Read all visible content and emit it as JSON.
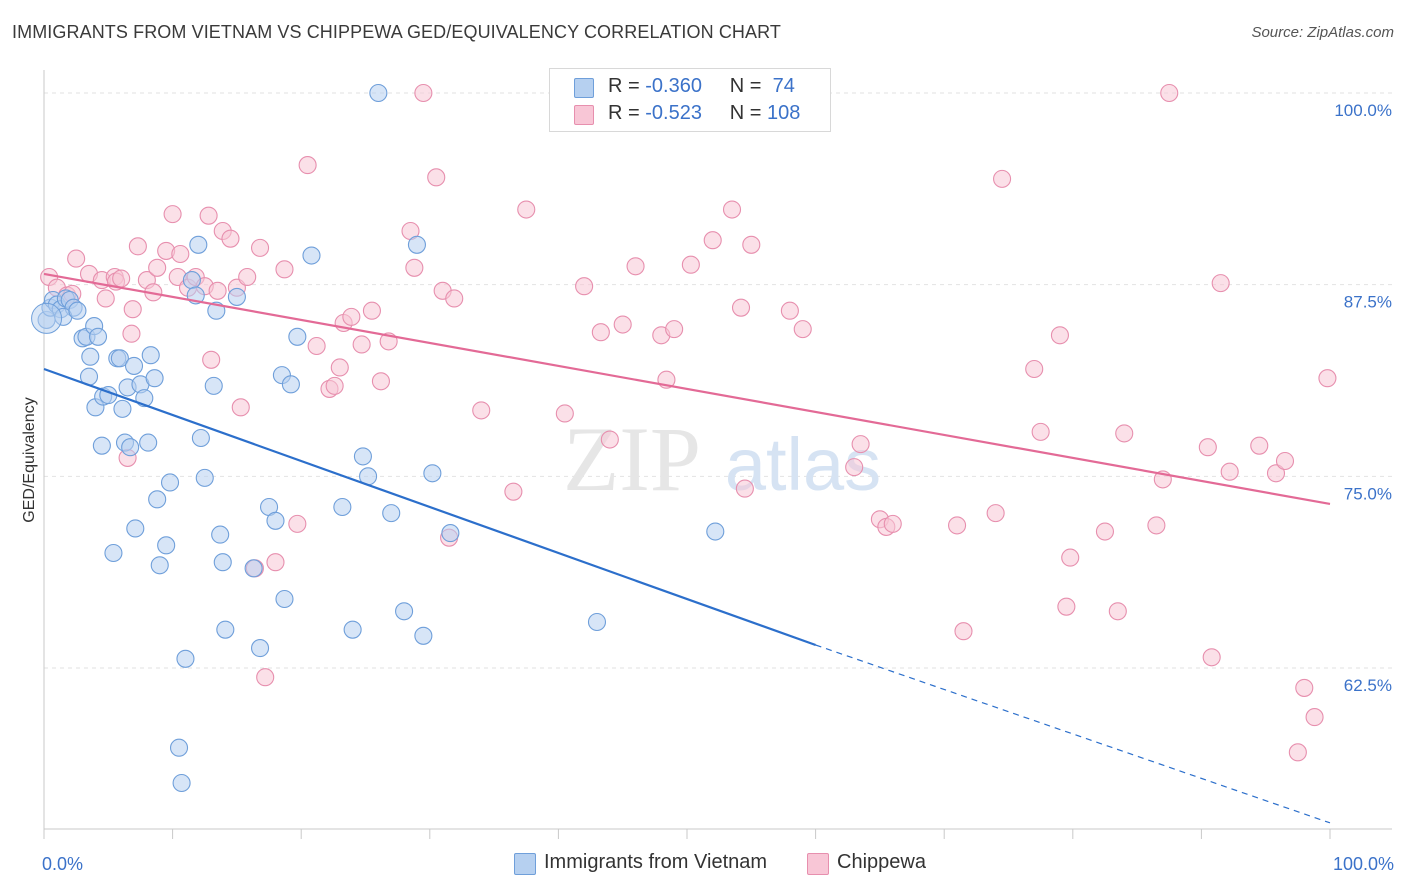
{
  "title": "IMMIGRANTS FROM VIETNAM VS CHIPPEWA GED/EQUIVALENCY CORRELATION CHART",
  "source": "Source: ZipAtlas.com",
  "watermark": {
    "zip": "ZIP",
    "atlas": "atlas"
  },
  "legend": {
    "r_label": "R =",
    "n_label": "N =",
    "series": [
      {
        "r": "-0.360",
        "n": "74",
        "color": "#a9c7ee",
        "stroke": "#6d9fdc"
      },
      {
        "r": "-0.523",
        "n": "108",
        "color": "#f5b8cc",
        "stroke": "#e58aa8"
      }
    ]
  },
  "chart_data": {
    "type": "scatter",
    "xlabel": "",
    "ylabel": "GED/Equivalency",
    "xlim": [
      0,
      100
    ],
    "ylim": [
      52,
      101.5
    ],
    "x_tick_labels": {
      "min": "0.0%",
      "max": "100.0%"
    },
    "y_ticks": [
      {
        "value": 100,
        "label": "100.0%"
      },
      {
        "value": 87.5,
        "label": "87.5%"
      },
      {
        "value": 75,
        "label": "75.0%"
      },
      {
        "value": 62.5,
        "label": "62.5%"
      }
    ],
    "grid": true,
    "legend_position": "top-center",
    "series": [
      {
        "name": "Immigrants from Vietnam",
        "fill": "#b6d0f0",
        "stroke": "#6f9fda",
        "trend_color": "#2c6fcb",
        "trend": {
          "x0": 0,
          "y0": 82.0,
          "x1": 60,
          "y1": 64.0,
          "dash_to_x": 100,
          "dash_to_y": 52.4
        },
        "points": [
          [
            0.2,
            85.2
          ],
          [
            0.5,
            86.0
          ],
          [
            0.7,
            86.5
          ],
          [
            1.0,
            86.2
          ],
          [
            1.3,
            85.9
          ],
          [
            1.7,
            86.6
          ],
          [
            2.0,
            86.5
          ],
          [
            2.3,
            86.0
          ],
          [
            3.0,
            84.0
          ],
          [
            3.3,
            84.1
          ],
          [
            3.6,
            82.8
          ],
          [
            3.9,
            84.8
          ],
          [
            4.2,
            84.1
          ],
          [
            3.5,
            81.5
          ],
          [
            4.0,
            79.5
          ],
          [
            4.5,
            77.0
          ],
          [
            4.6,
            80.2
          ],
          [
            5.0,
            80.3
          ],
          [
            5.7,
            82.7
          ],
          [
            5.9,
            82.7
          ],
          [
            6.1,
            79.4
          ],
          [
            6.3,
            77.2
          ],
          [
            6.5,
            80.8
          ],
          [
            6.7,
            76.9
          ],
          [
            7.0,
            82.2
          ],
          [
            7.5,
            81.0
          ],
          [
            7.8,
            80.1
          ],
          [
            8.1,
            77.2
          ],
          [
            8.3,
            82.9
          ],
          [
            8.6,
            81.4
          ],
          [
            8.8,
            73.5
          ],
          [
            9.0,
            69.2
          ],
          [
            9.5,
            70.5
          ],
          [
            9.8,
            74.6
          ],
          [
            10.5,
            57.3
          ],
          [
            10.7,
            55.0
          ],
          [
            11.0,
            63.1
          ],
          [
            11.5,
            87.8
          ],
          [
            11.8,
            86.8
          ],
          [
            12.0,
            90.1
          ],
          [
            12.2,
            77.5
          ],
          [
            12.5,
            74.9
          ],
          [
            13.2,
            80.9
          ],
          [
            13.4,
            85.8
          ],
          [
            13.7,
            71.2
          ],
          [
            13.9,
            69.4
          ],
          [
            14.1,
            65.0
          ],
          [
            15.0,
            86.7
          ],
          [
            16.3,
            69.0
          ],
          [
            16.8,
            63.8
          ],
          [
            17.5,
            73.0
          ],
          [
            18.0,
            72.1
          ],
          [
            18.5,
            81.6
          ],
          [
            18.7,
            67.0
          ],
          [
            19.2,
            81.0
          ],
          [
            19.7,
            84.1
          ],
          [
            20.8,
            89.4
          ],
          [
            23.2,
            73.0
          ],
          [
            24.0,
            65.0
          ],
          [
            24.8,
            76.3
          ],
          [
            25.2,
            75.0
          ],
          [
            26.0,
            100.0
          ],
          [
            27.0,
            72.6
          ],
          [
            28.0,
            66.2
          ],
          [
            29.0,
            90.1
          ],
          [
            29.5,
            64.6
          ],
          [
            30.2,
            75.2
          ],
          [
            31.6,
            71.3
          ],
          [
            43.0,
            65.5
          ],
          [
            52.2,
            71.4
          ],
          [
            1.5,
            85.4
          ],
          [
            2.6,
            85.8
          ],
          [
            7.1,
            71.6
          ],
          [
            5.4,
            70.0
          ]
        ]
      },
      {
        "name": "Chippewa",
        "fill": "#f8c6d6",
        "stroke": "#e78fae",
        "trend_color": "#e36a96",
        "trend": {
          "x0": 0,
          "y0": 88.2,
          "x1": 100,
          "y1": 73.2
        },
        "points": [
          [
            0.4,
            88.0
          ],
          [
            1.0,
            87.3
          ],
          [
            1.8,
            86.8
          ],
          [
            2.2,
            86.9
          ],
          [
            2.5,
            89.2
          ],
          [
            3.5,
            88.2
          ],
          [
            4.5,
            87.8
          ],
          [
            4.8,
            86.6
          ],
          [
            5.5,
            88.0
          ],
          [
            5.6,
            87.7
          ],
          [
            6.0,
            87.9
          ],
          [
            6.5,
            76.2
          ],
          [
            6.8,
            84.3
          ],
          [
            7.3,
            90.0
          ],
          [
            8.0,
            87.8
          ],
          [
            8.5,
            87.0
          ],
          [
            8.8,
            88.6
          ],
          [
            9.5,
            89.7
          ],
          [
            10.0,
            92.1
          ],
          [
            10.4,
            88.0
          ],
          [
            10.6,
            89.5
          ],
          [
            11.2,
            87.3
          ],
          [
            11.8,
            88.0
          ],
          [
            12.5,
            87.4
          ],
          [
            12.8,
            92.0
          ],
          [
            13.0,
            82.6
          ],
          [
            13.5,
            87.1
          ],
          [
            13.9,
            91.0
          ],
          [
            14.5,
            90.5
          ],
          [
            15.0,
            87.3
          ],
          [
            15.3,
            79.5
          ],
          [
            15.8,
            88.0
          ],
          [
            16.4,
            69.0
          ],
          [
            16.8,
            89.9
          ],
          [
            17.2,
            61.9
          ],
          [
            18.0,
            69.4
          ],
          [
            18.7,
            88.5
          ],
          [
            19.7,
            71.9
          ],
          [
            20.5,
            95.3
          ],
          [
            21.2,
            83.5
          ],
          [
            22.2,
            80.7
          ],
          [
            22.6,
            80.9
          ],
          [
            23.0,
            82.1
          ],
          [
            23.3,
            85.0
          ],
          [
            23.9,
            85.4
          ],
          [
            24.7,
            83.6
          ],
          [
            25.5,
            85.8
          ],
          [
            26.2,
            81.2
          ],
          [
            26.8,
            83.8
          ],
          [
            28.5,
            91.0
          ],
          [
            28.8,
            88.6
          ],
          [
            29.5,
            100.0
          ],
          [
            30.5,
            94.5
          ],
          [
            31.0,
            87.1
          ],
          [
            31.5,
            71.0
          ],
          [
            31.9,
            86.6
          ],
          [
            34.0,
            79.3
          ],
          [
            36.5,
            74.0
          ],
          [
            37.5,
            92.4
          ],
          [
            40.5,
            79.1
          ],
          [
            42.0,
            87.4
          ],
          [
            43.3,
            84.4
          ],
          [
            44.0,
            77.4
          ],
          [
            45.0,
            84.9
          ],
          [
            46.0,
            88.7
          ],
          [
            48.0,
            84.2
          ],
          [
            48.4,
            81.3
          ],
          [
            49.0,
            84.6
          ],
          [
            50.3,
            88.8
          ],
          [
            52.0,
            90.4
          ],
          [
            53.5,
            92.4
          ],
          [
            54.2,
            86.0
          ],
          [
            54.5,
            74.2
          ],
          [
            55.0,
            90.1
          ],
          [
            58.0,
            85.8
          ],
          [
            59.0,
            84.6
          ],
          [
            63.0,
            75.6
          ],
          [
            63.5,
            77.1
          ],
          [
            65.0,
            72.2
          ],
          [
            65.5,
            71.7
          ],
          [
            66.0,
            71.9
          ],
          [
            71.0,
            71.8
          ],
          [
            71.5,
            64.9
          ],
          [
            74.0,
            72.6
          ],
          [
            74.5,
            94.4
          ],
          [
            77.0,
            82.0
          ],
          [
            77.5,
            77.9
          ],
          [
            79.0,
            84.2
          ],
          [
            79.5,
            66.5
          ],
          [
            79.8,
            69.7
          ],
          [
            82.5,
            71.4
          ],
          [
            83.5,
            66.2
          ],
          [
            84.0,
            77.8
          ],
          [
            86.5,
            71.8
          ],
          [
            87.0,
            74.8
          ],
          [
            87.5,
            100.0
          ],
          [
            90.5,
            76.9
          ],
          [
            90.8,
            63.2
          ],
          [
            91.5,
            87.6
          ],
          [
            92.2,
            75.3
          ],
          [
            94.5,
            77.0
          ],
          [
            95.8,
            75.2
          ],
          [
            96.5,
            76.0
          ],
          [
            97.5,
            57.0
          ],
          [
            98.0,
            61.2
          ],
          [
            98.8,
            59.3
          ],
          [
            99.8,
            81.4
          ],
          [
            6.9,
            85.9
          ]
        ]
      }
    ]
  },
  "bottom_legend": [
    {
      "label": "Immigrants from Vietnam",
      "color": "#b6d0f0",
      "stroke": "#6f9fda"
    },
    {
      "label": "Chippewa",
      "color": "#f8c6d6",
      "stroke": "#e78fae"
    }
  ]
}
